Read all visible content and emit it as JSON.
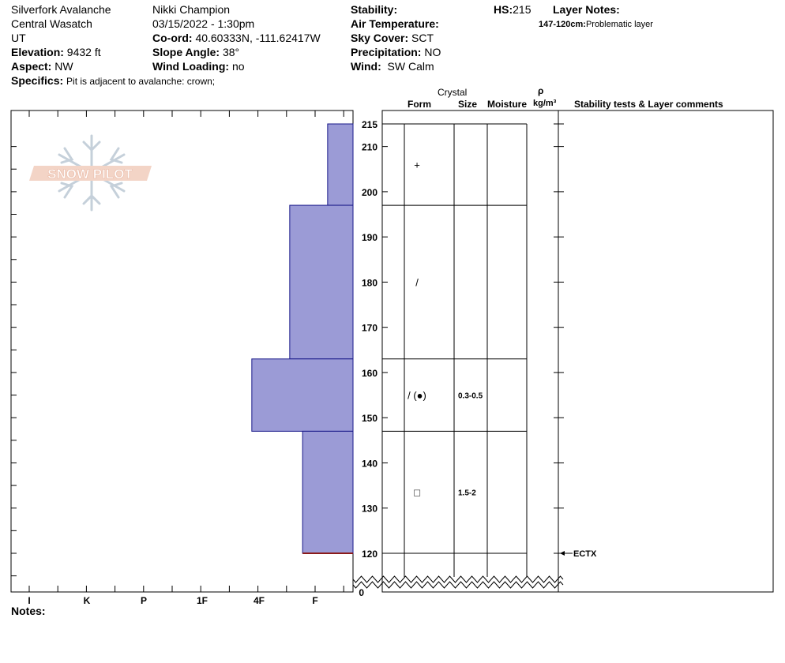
{
  "header": {
    "location": "Silverfork Avalanche",
    "range": "Central Wasatch",
    "state": "UT",
    "elevation_label": "Elevation:",
    "elevation_value": "9432 ft",
    "aspect_label": "Aspect:",
    "aspect_value": "NW",
    "specifics_label": "Specifics:",
    "specifics_value": "Pit is adjacent to avalanche: crown;",
    "observer": "Nikki Champion",
    "datetime": "03/15/2022 - 1:30pm",
    "coord_label": "Co-ord:",
    "coord_value": "40.60333N, -111.62417W",
    "slope_label": "Slope Angle:",
    "slope_value": "38°",
    "wind_loading_label": "Wind Loading:",
    "wind_loading_value": "no",
    "stability_label": "Stability:",
    "stability_value": "",
    "air_temp_label": "Air Temperature:",
    "air_temp_value": "",
    "sky_label": "Sky Cover:",
    "sky_value": "SCT",
    "precip_label": "Precipitation:",
    "precip_value": "NO",
    "wind_label": "Wind:",
    "wind_value": "SW Calm",
    "hs_label": "HS:",
    "hs_value": "215",
    "layer_notes_label": "Layer Notes:",
    "layer_note_range": "147-120cm:",
    "layer_note_text": "Problematic layer"
  },
  "logo": {
    "text": "SNOW PILOT"
  },
  "columns": {
    "crystal": "Crystal",
    "form": "Form",
    "size": "Size",
    "moisture": "Moisture",
    "rho": "ρ",
    "density_unit": "kg/m³",
    "comments": "Stability tests & Layer comments"
  },
  "notes_label": "Notes:",
  "colors": {
    "layer_fill": "#9b9bd6",
    "layer_stroke": "#1a1a8a",
    "crust_line": "#8b1a1a"
  },
  "chart_data": {
    "type": "bar",
    "orientation": "horizontal",
    "ylim": [
      120,
      215
    ],
    "y_ticks": [
      120,
      130,
      140,
      150,
      160,
      170,
      180,
      190,
      200,
      210,
      215
    ],
    "y_bottom_label": "0",
    "hardness_scale": [
      "I",
      "K",
      "P",
      "1F",
      "4F",
      "F"
    ],
    "layers": [
      {
        "top": 215,
        "bottom": 197,
        "hardness": 0.67,
        "form": "+",
        "size": ""
      },
      {
        "top": 197,
        "bottom": 163,
        "hardness": 1.67,
        "form": "/",
        "size": ""
      },
      {
        "top": 163,
        "bottom": 147,
        "hardness": 2.67,
        "form": "/ (●)",
        "size": "0.3-0.5"
      },
      {
        "top": 147,
        "bottom": 120,
        "hardness": 1.33,
        "form": "□",
        "size": "1.5-2"
      }
    ],
    "tests": [
      {
        "height": 120,
        "label": "ECTX"
      }
    ]
  }
}
